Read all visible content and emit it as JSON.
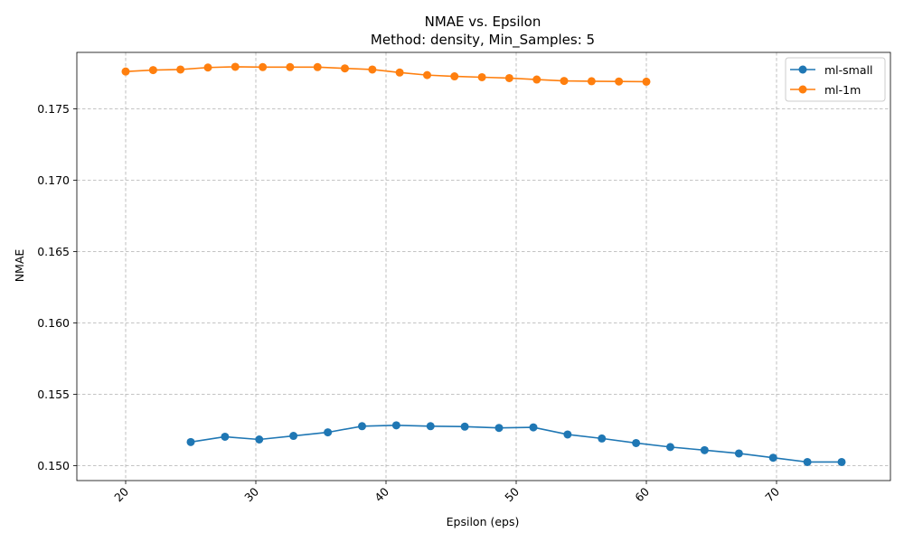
{
  "chart_data": {
    "type": "line",
    "title": "NMAE vs. Epsilon",
    "subtitle": "Method: density, Min_Samples: 5",
    "xlabel": "Epsilon (eps)",
    "ylabel": "NMAE",
    "xlim": [
      16.25,
      78.75
    ],
    "ylim": [
      0.14895,
      0.17895
    ],
    "xticks": [
      20,
      30,
      40,
      50,
      60,
      70
    ],
    "yticks": [
      0.15,
      0.155,
      0.16,
      0.165,
      0.17,
      0.175
    ],
    "grid": true,
    "legend_position": "top-right",
    "series": [
      {
        "name": "ml-small",
        "color": "#1f77b4",
        "x": [
          25.0,
          27.63,
          30.26,
          32.89,
          35.53,
          38.16,
          40.79,
          43.42,
          46.05,
          48.68,
          51.32,
          53.95,
          56.58,
          59.21,
          61.84,
          64.47,
          67.11,
          69.74,
          72.37,
          75.0
        ],
        "y": [
          0.15165,
          0.15202,
          0.15183,
          0.15208,
          0.15233,
          0.15276,
          0.15282,
          0.15276,
          0.15273,
          0.15264,
          0.15268,
          0.15218,
          0.1519,
          0.15158,
          0.1513,
          0.15108,
          0.15085,
          0.15055,
          0.15025,
          0.15025
        ]
      },
      {
        "name": "ml-1m",
        "color": "#ff7f0e",
        "x": [
          20.0,
          22.11,
          24.21,
          26.32,
          28.42,
          30.53,
          32.63,
          34.74,
          36.84,
          38.95,
          41.05,
          43.16,
          45.26,
          47.37,
          49.47,
          51.58,
          53.68,
          55.79,
          57.89,
          60.0
        ],
        "y": [
          0.17761,
          0.17771,
          0.17775,
          0.17789,
          0.17794,
          0.17792,
          0.17792,
          0.17792,
          0.17783,
          0.17775,
          0.17754,
          0.17736,
          0.17727,
          0.17721,
          0.17715,
          0.17705,
          0.17695,
          0.17693,
          0.17691,
          0.1769
        ]
      }
    ]
  }
}
